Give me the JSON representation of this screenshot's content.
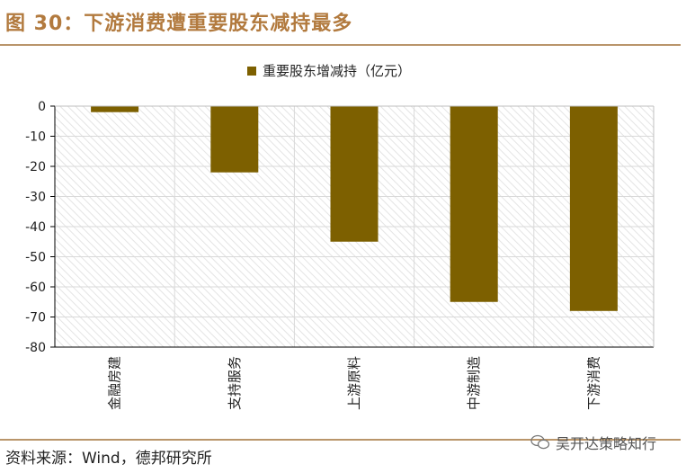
{
  "figure": {
    "title": "图 30：下游消费遭重要股东减持最多",
    "source": "资料来源：Wind，德邦研究所",
    "watermark": "吴开达策略知行"
  },
  "chart_data": {
    "type": "bar",
    "title": "",
    "categories": [
      "金融房建",
      "支持服务",
      "上游原料",
      "中游制造",
      "下游消费"
    ],
    "series": [
      {
        "name": "重要股东增减持（亿元）",
        "values": [
          -2,
          -22,
          -45,
          -65,
          -68
        ]
      }
    ],
    "yticks": [
      "0",
      "-10",
      "-20",
      "-30",
      "-40",
      "-50",
      "-60",
      "-70",
      "-80"
    ],
    "ylim": [
      -80,
      0
    ],
    "xlabel": "",
    "ylabel": "",
    "legend_position": "top-center",
    "grid": true,
    "colors": {
      "bar": "#7d6000",
      "axis": "#000000",
      "grid": "#d9d9d9",
      "title": "#b27a3e",
      "rule": "#b9956a"
    }
  }
}
